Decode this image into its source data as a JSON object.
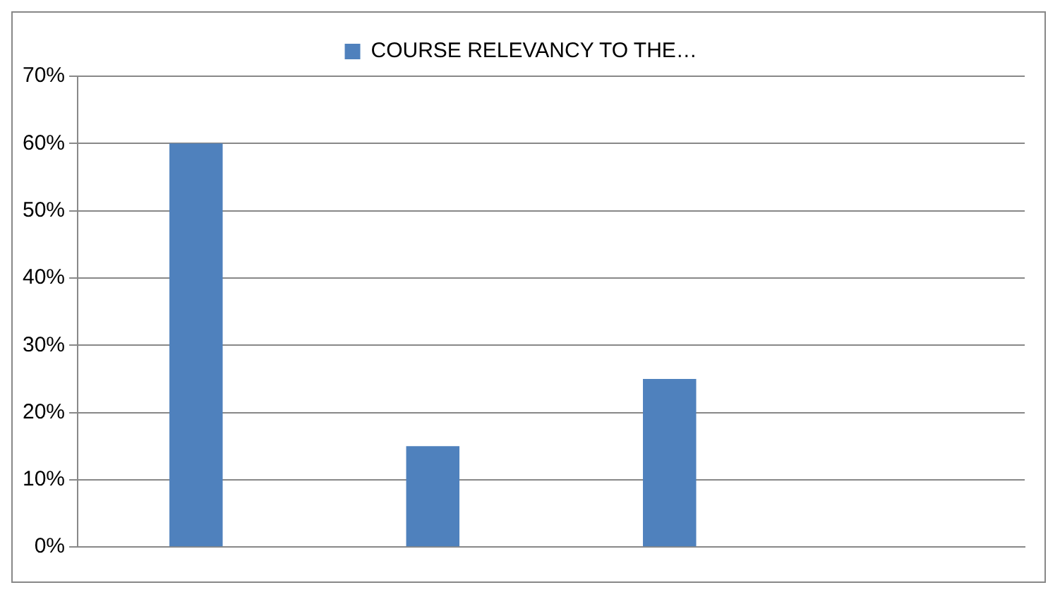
{
  "chart_data": {
    "type": "bar",
    "categories": [
      null,
      null,
      null,
      null
    ],
    "series": [
      {
        "name": "COURSE RELEVANCY TO THE…",
        "color": "#4f81bd",
        "values": [
          0.6,
          0.15,
          0.25,
          null
        ]
      }
    ],
    "ylim": [
      0,
      0.7
    ],
    "yticks": [
      {
        "value": 0,
        "label": "0%"
      },
      {
        "value": 0.1,
        "label": "10%"
      },
      {
        "value": 0.2,
        "label": "20%"
      },
      {
        "value": 0.3,
        "label": "30%"
      },
      {
        "value": 0.4,
        "label": "40%"
      },
      {
        "value": 0.5,
        "label": "50%"
      },
      {
        "value": 0.6,
        "label": "60%"
      },
      {
        "value": 0.7,
        "label": "70%"
      }
    ],
    "grid": "y",
    "legend": "top"
  }
}
